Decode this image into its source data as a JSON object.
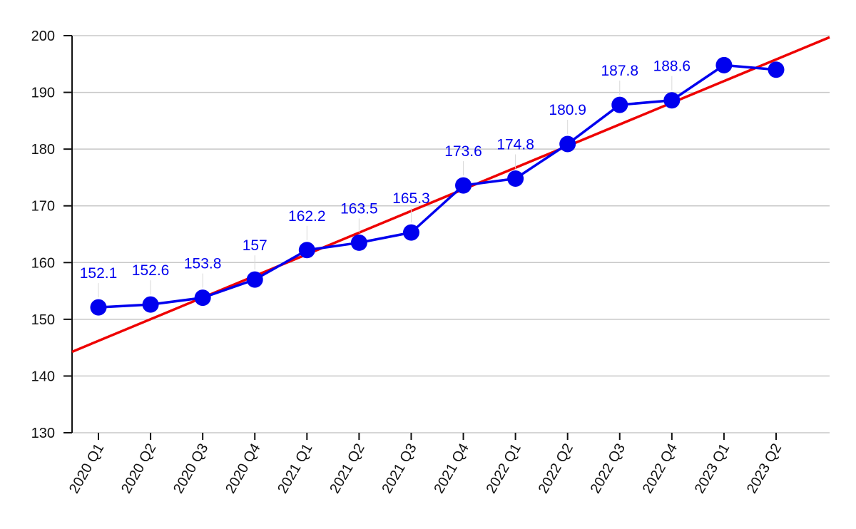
{
  "chart_data": {
    "type": "line",
    "categories": [
      "2020 Q1",
      "2020 Q2",
      "2020 Q3",
      "2020 Q4",
      "2021 Q1",
      "2021 Q2",
      "2021 Q3",
      "2021 Q4",
      "2022 Q1",
      "2022 Q2",
      "2022 Q3",
      "2022 Q4",
      "2023 Q1",
      "2023 Q2"
    ],
    "series": [
      {
        "values": [
          152.1,
          152.6,
          153.8,
          157,
          162.2,
          163.5,
          165.3,
          173.6,
          174.8,
          180.9,
          187.8,
          188.6,
          194.8,
          194
        ],
        "data_labels": [
          "152.1",
          "152.6",
          "153.8",
          "157",
          "162.2",
          "163.5",
          "165.3",
          "173.6",
          "174.8",
          "180.9",
          "187.8",
          "188.6",
          "",
          ""
        ],
        "color": "#0000ee"
      }
    ],
    "trendline": {
      "color": "#ee0000",
      "start": 146.2,
      "end": 195.8
    },
    "ylim": [
      130,
      200
    ],
    "yticks": [
      "130",
      "140",
      "150",
      "160",
      "170",
      "180",
      "190",
      "200"
    ],
    "grid": true,
    "title": "",
    "xlabel": "",
    "ylabel": ""
  }
}
